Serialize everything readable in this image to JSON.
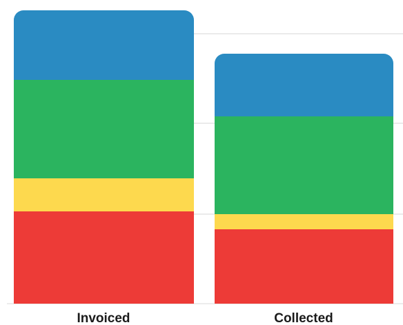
{
  "chart_data": {
    "type": "bar",
    "stacked": true,
    "categories": [
      "Invoiced",
      "Collected"
    ],
    "series": [
      {
        "color": "#ed3b37",
        "values": [
          134,
          108
        ]
      },
      {
        "color": "#fdd94e",
        "values": [
          48,
          22
        ]
      },
      {
        "color": "#2bb45f",
        "values": [
          143,
          142
        ]
      },
      {
        "color": "#2a8bc2",
        "values": [
          101,
          91
        ]
      }
    ],
    "ylim": [
      0,
      426
    ],
    "grid": true,
    "gridlines": [
      130,
      262,
      392
    ],
    "legend": "none",
    "title": "",
    "xlabel": "",
    "ylabel": ""
  }
}
